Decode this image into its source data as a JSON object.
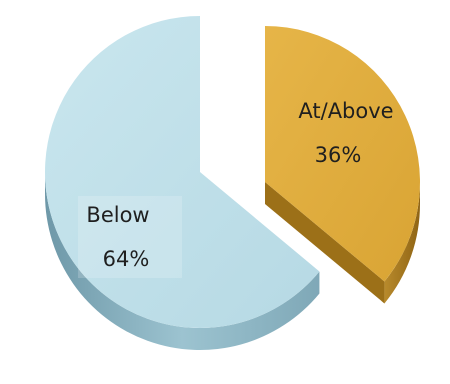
{
  "chart_data": {
    "type": "pie",
    "style": "3d-exploded",
    "slices": [
      {
        "label": "Below",
        "value": 64,
        "display": "64%",
        "color": "#bfe0ea",
        "side_color": "#7fa9b8"
      },
      {
        "label": "At/Above",
        "value": 36,
        "display": "36%",
        "color": "#e0ad3c",
        "side_color": "#a97a1d"
      }
    ],
    "legend": "none"
  }
}
